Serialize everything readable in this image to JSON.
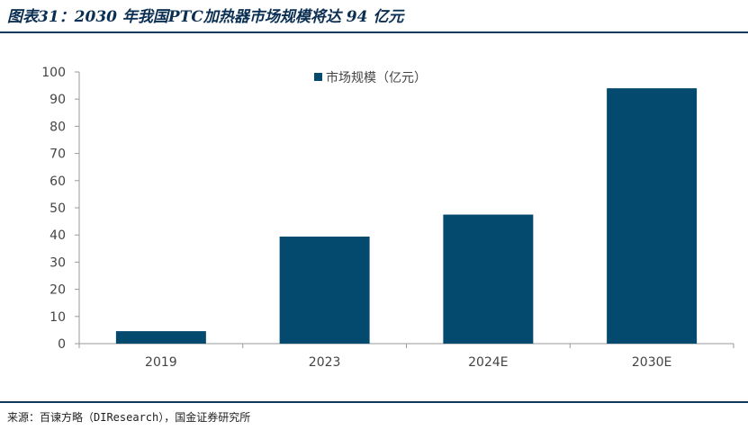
{
  "figure": {
    "title": "图表31：2030 年我国PTC加热器市场规模将达 94 亿元",
    "source": "来源：百谏方略（DIResearch），国金证券研究所"
  },
  "colors": {
    "bar": "#034a6e",
    "rule": "#0b3a5e",
    "axis": "#999999",
    "text": "#444444"
  },
  "chart_data": {
    "type": "bar",
    "categories": [
      "2019",
      "2023",
      "2024E",
      "2030E"
    ],
    "series": [
      {
        "name": "市场规模（亿元）",
        "values": [
          4.6,
          39.4,
          47.5,
          94
        ]
      }
    ],
    "ylim": [
      0,
      100
    ],
    "yticks": [
      0,
      10,
      20,
      30,
      40,
      50,
      60,
      70,
      80,
      90,
      100
    ],
    "grid": false,
    "legend_position": "top-center"
  }
}
